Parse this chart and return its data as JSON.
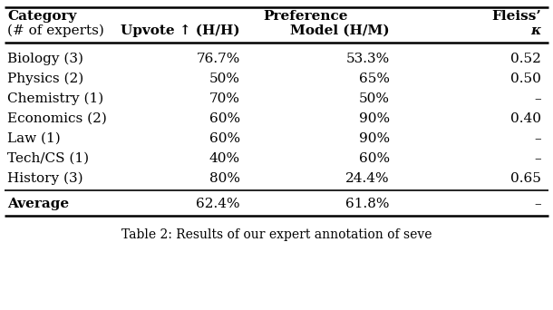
{
  "header_row1_cat": "Category",
  "header_row1_pref": "Preference",
  "header_row1_fleiss": "Fleiss’",
  "header_row2_cat": "(# of experts)",
  "header_row2_upvote": "Upvote ↑ (H/H)",
  "header_row2_model": "Model (H/M)",
  "header_row2_kappa": "κ",
  "rows": [
    [
      "Biology (3)",
      "76.7%",
      "53.3%",
      "0.52"
    ],
    [
      "Physics (2)",
      "50%",
      "65%",
      "0.50"
    ],
    [
      "Chemistry (1)",
      "70%",
      "50%",
      "–"
    ],
    [
      "Economics (2)",
      "60%",
      "90%",
      "0.40"
    ],
    [
      "Law (1)",
      "60%",
      "90%",
      "–"
    ],
    [
      "Tech/CS (1)",
      "40%",
      "60%",
      "–"
    ],
    [
      "History (3)",
      "80%",
      "24.4%",
      "0.65"
    ]
  ],
  "avg_row": [
    "Average",
    "62.4%",
    "61.8%",
    "–"
  ],
  "caption": "Table 2: Results of our expert annotation of seve",
  "bg_color": "#ffffff",
  "text_color": "#000000",
  "figsize": [
    6.1,
    3.42
  ],
  "dpi": 100
}
